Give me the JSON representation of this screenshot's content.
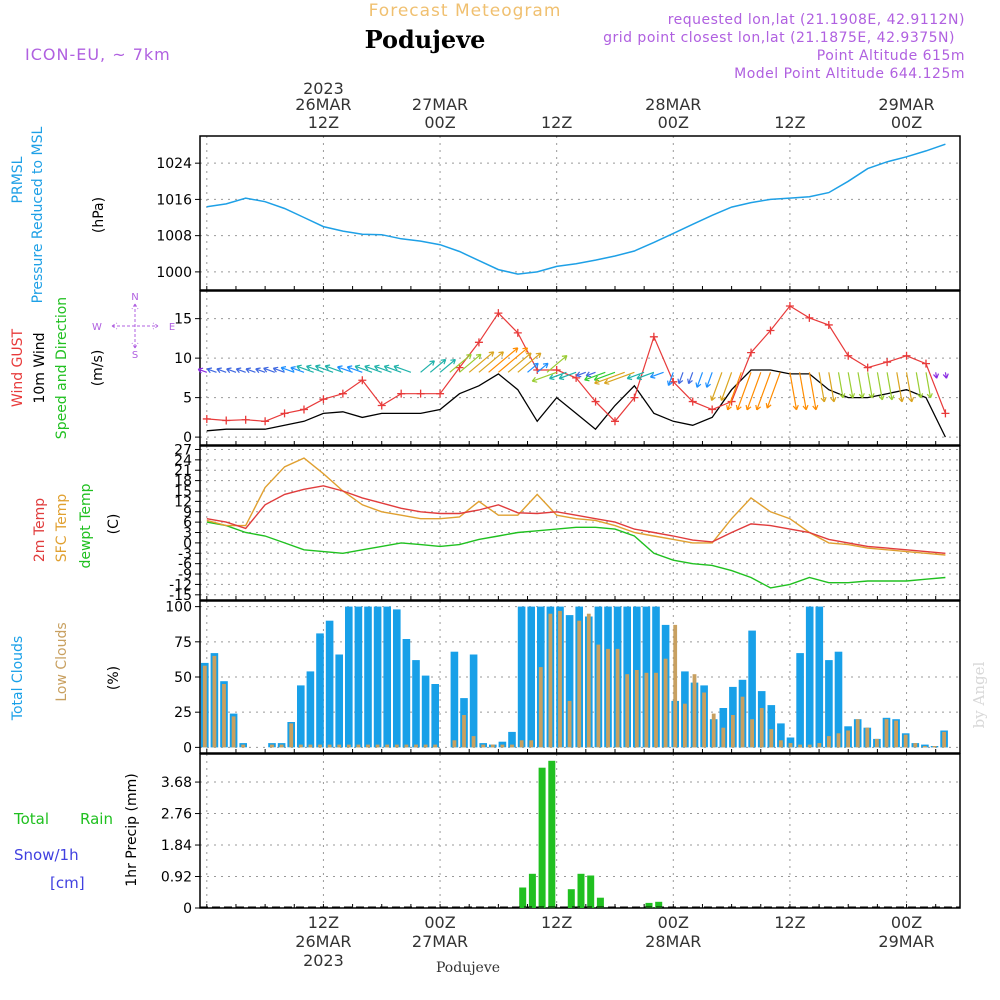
{
  "header": {
    "forecast_title": "Forecast Meteogram",
    "location": "Podujeve",
    "model": "ICON-EU, ~ 7km",
    "requested": "requested lon,lat (21.1908E, 42.9112N)",
    "grid_point": "grid point closest lon,lat (21.1875E, 42.9375N)",
    "point_alt": "Point Altitude 615m",
    "model_alt": "Model Point Altitude 644.125m",
    "footer_location": "Podujeve",
    "credit": "by Angel"
  },
  "time_axis": {
    "top_ticks": [
      {
        "hour": 12,
        "line1": "2023",
        "line2": "26MAR",
        "line3": "12Z"
      },
      {
        "hour": 24,
        "line1": "",
        "line2": "27MAR",
        "line3": "00Z"
      },
      {
        "hour": 36,
        "line1": "",
        "line2": "",
        "line3": "12Z"
      },
      {
        "hour": 48,
        "line1": "",
        "line2": "28MAR",
        "line3": "00Z"
      },
      {
        "hour": 60,
        "line1": "",
        "line2": "",
        "line3": "12Z"
      },
      {
        "hour": 72,
        "line1": "",
        "line2": "29MAR",
        "line3": "00Z"
      }
    ],
    "bottom_ticks": [
      {
        "hour": 12,
        "line1": "12Z",
        "line2": "26MAR",
        "line3": "2023"
      },
      {
        "hour": 24,
        "line1": "00Z",
        "line2": "27MAR",
        "line3": ""
      },
      {
        "hour": 36,
        "line1": "12Z",
        "line2": "",
        "line3": ""
      },
      {
        "hour": 48,
        "line1": "00Z",
        "line2": "28MAR",
        "line3": ""
      },
      {
        "hour": 60,
        "line1": "12Z",
        "line2": "",
        "line3": ""
      },
      {
        "hour": 72,
        "line1": "00Z",
        "line2": "29MAR",
        "line3": ""
      }
    ]
  },
  "colors": {
    "pressure": "#1ea0e6",
    "gust": "#e83a3a",
    "wind10": "#000000",
    "temp2m": "#e03c3c",
    "sfc": "#e0a030",
    "dew": "#20c020",
    "clouds_total": "#18a0e8",
    "clouds_low": "#c8a060",
    "rain": "#20c020",
    "snow": "#4040e0",
    "purple": "#b060e0",
    "gold": "#f0c070"
  },
  "chart_data": [
    {
      "type": "line",
      "id": "pressure",
      "ylabel_1": "PRMSL",
      "ylabel_2": "Pressure Reduced to MSL",
      "unit": "(hPa)",
      "yticks": [
        1000,
        1008,
        1016,
        1024
      ],
      "ylim": [
        996,
        1030
      ],
      "x": [
        0,
        2,
        4,
        6,
        8,
        10,
        12,
        14,
        16,
        18,
        20,
        22,
        24,
        26,
        28,
        30,
        32,
        34,
        36,
        38,
        40,
        42,
        44,
        46,
        48,
        50,
        52,
        54,
        56,
        58,
        60,
        62,
        64,
        66,
        68,
        70,
        72,
        74,
        76
      ],
      "values": [
        1014.4,
        1015,
        1016.3,
        1015.5,
        1014,
        1012,
        1010,
        1009,
        1008.3,
        1008.2,
        1007.3,
        1006.8,
        1006,
        1004.5,
        1002.5,
        1000.5,
        999.5,
        1000,
        1001.2,
        1001.8,
        1002.6,
        1003.5,
        1004.6,
        1006.5,
        1008.5,
        1010.5,
        1012.5,
        1014.3,
        1015.3,
        1016,
        1016.3,
        1016.6,
        1017.5,
        1020,
        1022.8,
        1024.3,
        1025.4,
        1026.7,
        1028.2
      ]
    },
    {
      "type": "line",
      "id": "wind",
      "ylabel_1": "Wind GUST",
      "ylabel_2": "10m Wind",
      "ylabel_3": "Speed and Direction",
      "unit": "(m/s)",
      "compass": {
        "n": "N",
        "s": "S",
        "w": "W",
        "e": "E"
      },
      "yticks": [
        0,
        5,
        10,
        15
      ],
      "ylim": [
        -1,
        18.5
      ],
      "x": [
        0,
        2,
        4,
        6,
        8,
        10,
        12,
        14,
        16,
        18,
        20,
        22,
        24,
        26,
        28,
        30,
        32,
        34,
        36,
        38,
        40,
        42,
        44,
        46,
        48,
        50,
        52,
        54,
        56,
        58,
        60,
        62,
        64,
        66,
        68,
        70,
        72,
        74,
        76
      ],
      "gust": [
        2.3,
        2.1,
        2.2,
        2,
        3,
        3.5,
        4.8,
        5.5,
        7.2,
        4,
        5.5,
        5.5,
        5.5,
        8.8,
        12,
        15.7,
        13.2,
        8.5,
        8.5,
        7.5,
        4.5,
        2,
        5,
        12.7,
        7,
        4.5,
        3.5,
        4.5,
        10.7,
        13.5,
        16.6,
        15.1,
        14.2,
        10.3,
        8.8,
        9.5,
        10.3,
        9.3,
        3
      ],
      "wind10": [
        0.8,
        1,
        1,
        1,
        1.5,
        2,
        3,
        3.2,
        2.5,
        3,
        3,
        3,
        3.5,
        5.5,
        6.5,
        8,
        6,
        2,
        5,
        3,
        1,
        4,
        6.5,
        3,
        2,
        1.5,
        2.5,
        6,
        8.5,
        8.5,
        8,
        8,
        6,
        5,
        5,
        5.5,
        6,
        5,
        0
      ]
    },
    {
      "type": "line",
      "id": "temperature",
      "ylabel_1": "2m Temp",
      "ylabel_2": "SFC Temp",
      "ylabel_3": "dewpt Temp",
      "unit": "(C)",
      "yticks": [
        -15,
        -12,
        -9,
        -6,
        -3,
        0,
        3,
        6,
        9,
        12,
        15,
        18,
        21,
        24,
        27
      ],
      "ylim": [
        -16.5,
        28
      ],
      "x": [
        0,
        2,
        4,
        6,
        8,
        10,
        12,
        14,
        16,
        18,
        20,
        22,
        24,
        26,
        28,
        30,
        32,
        34,
        36,
        38,
        40,
        42,
        44,
        46,
        48,
        50,
        52,
        54,
        56,
        58,
        60,
        62,
        64,
        66,
        68,
        70,
        72,
        74,
        76
      ],
      "temp2m": [
        7,
        6,
        4.2,
        11,
        14,
        15.5,
        16.5,
        15,
        13,
        11.5,
        10,
        9,
        8.5,
        8.5,
        9.5,
        11,
        8.7,
        8.5,
        9,
        8,
        7,
        6,
        4,
        3,
        2,
        0.8,
        0.3,
        3,
        5.5,
        5,
        4,
        3,
        1,
        0,
        -1,
        -1.5,
        -2,
        -2.5,
        -3
      ],
      "sfc": [
        6.5,
        5,
        5,
        16,
        22,
        24.5,
        20,
        15,
        11,
        9,
        8,
        7,
        7,
        7.5,
        12,
        8,
        8,
        14,
        8,
        7,
        6.5,
        5,
        3,
        2,
        1,
        0,
        0,
        7,
        13,
        9,
        7,
        3,
        0,
        -0.5,
        -1.5,
        -2,
        -2.5,
        -3,
        -3.5
      ],
      "dew": [
        6,
        5,
        3,
        2,
        0,
        -2,
        -2.5,
        -3,
        -2,
        -1,
        0,
        -0.5,
        -1,
        -0.5,
        1,
        2,
        3,
        3.5,
        4,
        4.5,
        4.5,
        4,
        2,
        -3,
        -5,
        -6,
        -6.5,
        -8,
        -10,
        -13,
        -12,
        -10,
        -11.5,
        -11.5,
        -11,
        -11,
        -11,
        -10.5,
        -10
      ]
    },
    {
      "type": "bar",
      "id": "clouds",
      "ylabel_1": "Total Clouds",
      "ylabel_2": "Low Clouds",
      "unit": "(%)",
      "yticks": [
        0,
        25,
        50,
        75,
        100
      ],
      "ylim": [
        -4,
        104
      ],
      "total": [
        60,
        67,
        47,
        24,
        3,
        0,
        0,
        3,
        3,
        18,
        44,
        54,
        81,
        90,
        66,
        100,
        100,
        100,
        100,
        100,
        98,
        77,
        62,
        51,
        45,
        0,
        68,
        35,
        66,
        3,
        2,
        4,
        11,
        100,
        100,
        100,
        100,
        100,
        94,
        100,
        93,
        100,
        100,
        100,
        100,
        100,
        100,
        100,
        87,
        33,
        54,
        46,
        44,
        20,
        28,
        43,
        48,
        83,
        40,
        30,
        17,
        7,
        67,
        100,
        100,
        62,
        68,
        15,
        20,
        14,
        6,
        21,
        20,
        10,
        3,
        2,
        1,
        12,
        0
      ],
      "low": [
        58,
        65,
        45,
        22,
        2,
        0,
        0,
        2,
        2,
        17,
        2,
        2,
        2,
        2,
        2,
        2,
        2,
        2,
        2,
        2,
        2,
        2,
        2,
        2,
        2,
        0,
        5,
        23,
        8,
        2,
        2,
        2,
        2,
        5,
        5,
        57,
        95,
        97,
        33,
        90,
        95,
        73,
        70,
        70,
        52,
        55,
        53,
        53,
        63,
        87,
        31,
        52,
        39,
        24,
        14,
        23,
        36,
        20,
        28,
        13,
        5,
        3,
        2,
        2,
        3,
        8,
        10,
        12,
        20,
        14,
        6,
        20,
        19,
        9,
        3,
        1,
        1,
        11,
        0
      ]
    },
    {
      "type": "bar",
      "id": "precip",
      "ylabel_1": "Total",
      "ylabel_2": "Rain",
      "ylabel_3": "Snow/1h",
      "ylabel_4": "[cm]",
      "unit": "1hr Precip (mm)",
      "yticks": [
        0,
        0.92,
        1.84,
        2.76,
        3.68
      ],
      "ylim": [
        0,
        4.5
      ],
      "x": [
        32.5,
        33.5,
        34.5,
        35.5,
        37.5,
        38.5,
        39.5,
        40.5,
        45.5,
        46.5
      ],
      "values": [
        0.6,
        1.0,
        4.1,
        4.3,
        0.55,
        1.0,
        0.95,
        0.3,
        0.15,
        0.18
      ]
    }
  ]
}
